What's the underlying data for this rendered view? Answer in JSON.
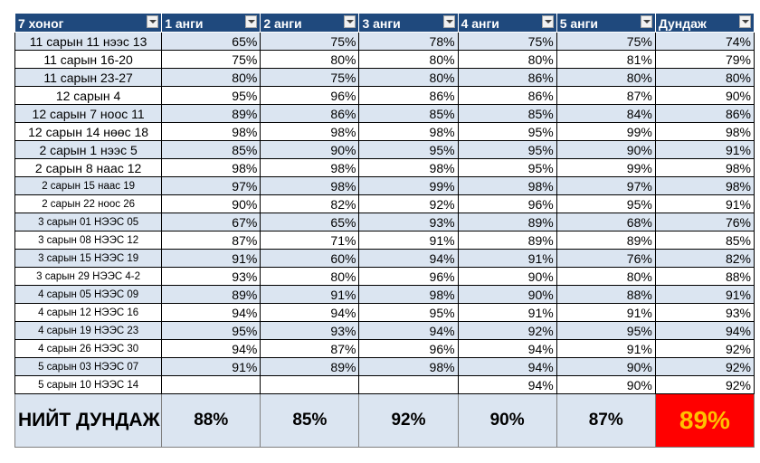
{
  "header": [
    "7 хоног",
    "1 анги",
    "2 анги",
    "3 анги",
    "4 анги",
    "5 анги",
    "Дундаж"
  ],
  "rows": [
    [
      "11 сарын 11 нээс 13",
      "65%",
      "75%",
      "78%",
      "75%",
      "75%",
      "74%"
    ],
    [
      "11 сарын 16-20",
      "75%",
      "80%",
      "80%",
      "80%",
      "81%",
      "79%"
    ],
    [
      "11 сарын 23-27",
      "80%",
      "75%",
      "80%",
      "86%",
      "80%",
      "80%"
    ],
    [
      "12 сарын 4",
      "95%",
      "96%",
      "86%",
      "86%",
      "87%",
      "90%"
    ],
    [
      "12 сарын 7 ноос 11",
      "89%",
      "86%",
      "85%",
      "85%",
      "84%",
      "86%"
    ],
    [
      "12 сарын 14 нөөс 18",
      "98%",
      "98%",
      "98%",
      "95%",
      "99%",
      "98%"
    ],
    [
      "2 сарын 1 нээс 5",
      "85%",
      "90%",
      "95%",
      "95%",
      "90%",
      "91%"
    ],
    [
      "2 сарын 8 наас 12",
      "98%",
      "98%",
      "98%",
      "95%",
      "99%",
      "98%"
    ],
    [
      "2 сарын 15 наас 19",
      "97%",
      "98%",
      "99%",
      "98%",
      "97%",
      "98%"
    ],
    [
      "2 сарын 22 ноос 26",
      "90%",
      "82%",
      "92%",
      "96%",
      "95%",
      "91%"
    ],
    [
      "3 сарын 01 НЭЭС 05",
      "67%",
      "65%",
      "93%",
      "89%",
      "68%",
      "76%"
    ],
    [
      "3 сарын 08 НЭЭС 12",
      "87%",
      "71%",
      "91%",
      "89%",
      "89%",
      "85%"
    ],
    [
      "3 сарын 15 НЭЭС 19",
      "91%",
      "60%",
      "94%",
      "91%",
      "76%",
      "82%"
    ],
    [
      "3 сарын 29 НЭЭС 4-2",
      "93%",
      "80%",
      "96%",
      "90%",
      "80%",
      "88%"
    ],
    [
      "4 сарын 05 НЭЭС 09",
      "89%",
      "91%",
      "98%",
      "90%",
      "88%",
      "91%"
    ],
    [
      "4 сарын 12 НЭЭС 16",
      "94%",
      "94%",
      "95%",
      "91%",
      "91%",
      "93%"
    ],
    [
      "4 сарын 19 НЭЭС 23",
      "95%",
      "93%",
      "94%",
      "92%",
      "95%",
      "94%"
    ],
    [
      "4 сарын 26 НЭЭС 30",
      "94%",
      "87%",
      "96%",
      "94%",
      "91%",
      "92%"
    ],
    [
      "5 сарын 03 НЭЭС 07",
      "91%",
      "89%",
      "98%",
      "94%",
      "90%",
      "92%"
    ],
    [
      "5 сарын 10 НЭЭС 14",
      "",
      "",
      "",
      "94%",
      "90%",
      "92%"
    ]
  ],
  "total": [
    "НИЙТ ДУНДАЖ",
    "88%",
    "85%",
    "92%",
    "90%",
    "87%",
    "89%"
  ],
  "colors": {
    "header_bg": "#1f497d",
    "band_bg": "#dbe5f1",
    "highlight_bg": "#ff0000",
    "highlight_text": "#ffc000"
  }
}
